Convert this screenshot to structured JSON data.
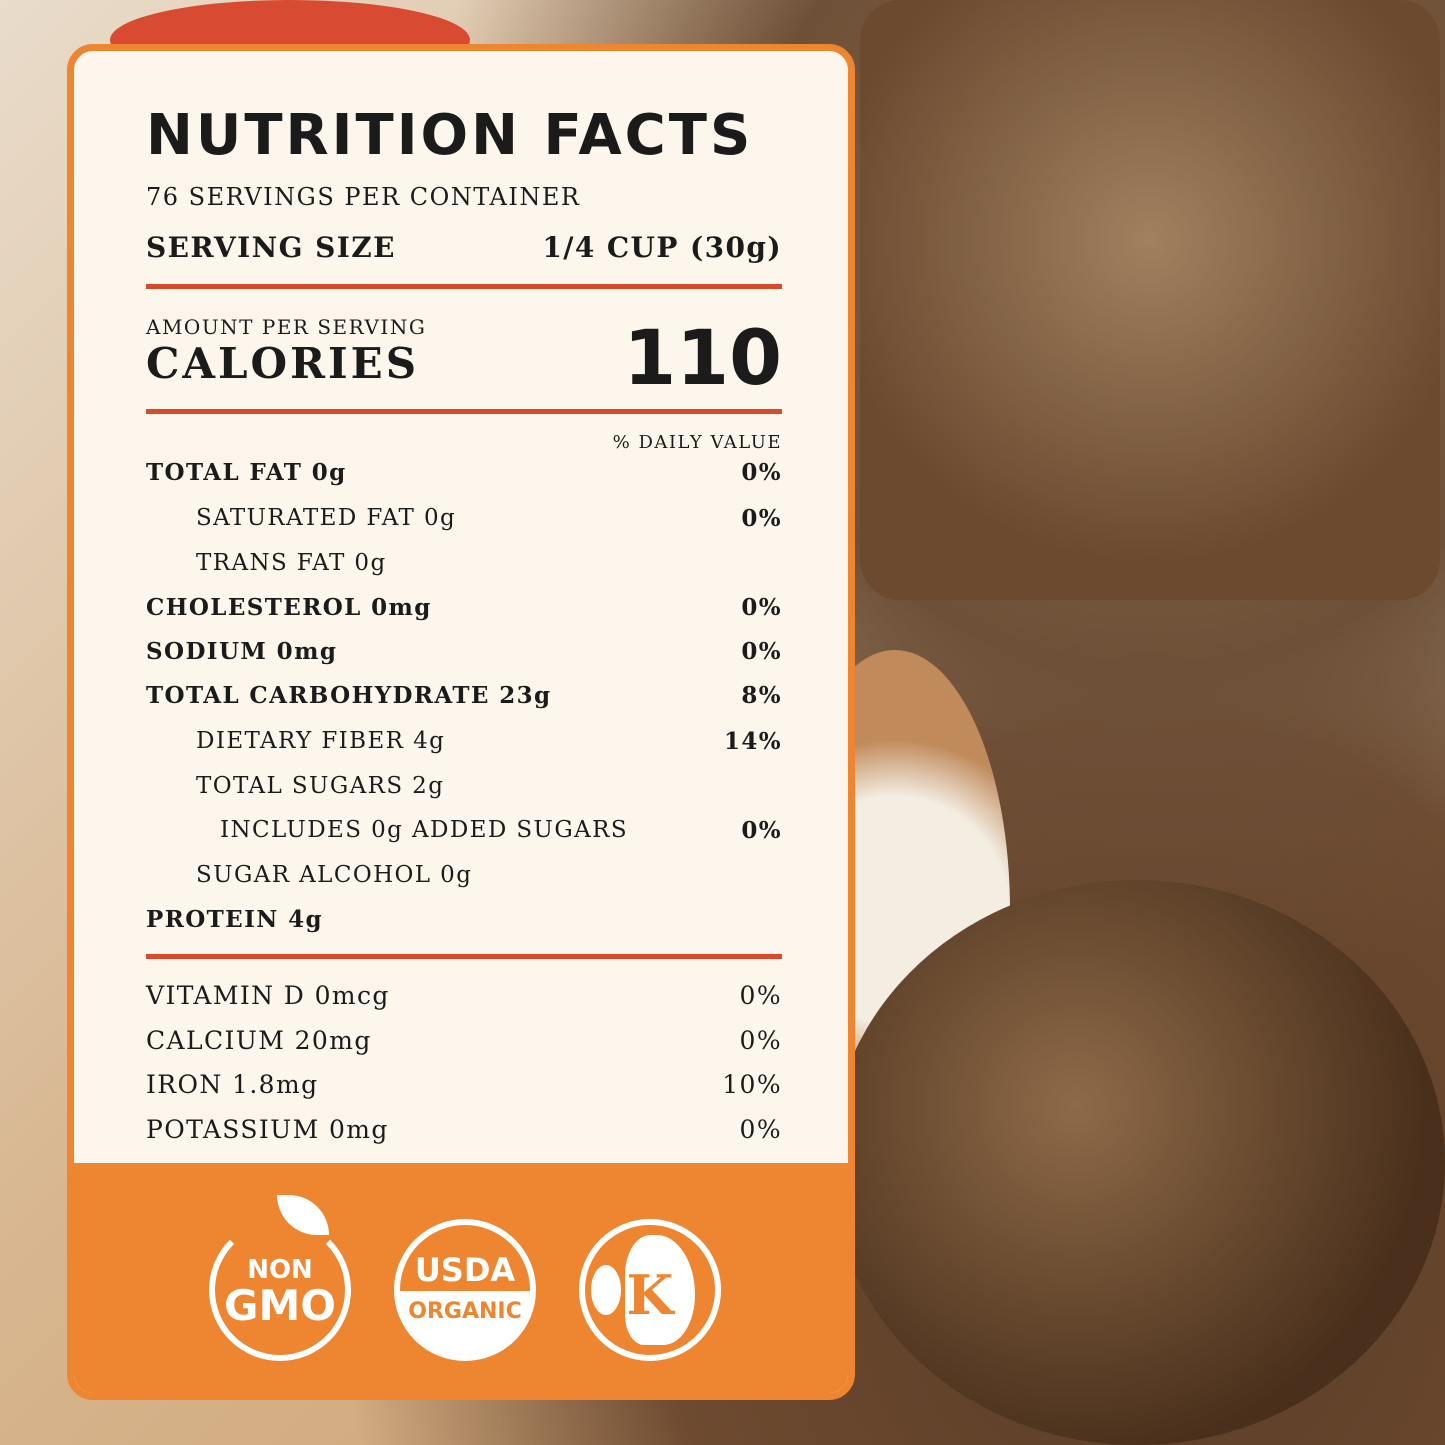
{
  "title": "NUTRITION FACTS",
  "servings": "76 SERVINGS PER CONTAINER",
  "serving_size": {
    "label": "SERVING SIZE",
    "value": "1/4 CUP (30g)"
  },
  "amount_per_serving": "AMOUNT PER SERVING",
  "calories": {
    "label": "CALORIES",
    "value": "110"
  },
  "daily_value_header": "% DAILY VALUE",
  "nutrients": [
    {
      "label": "TOTAL FAT 0g",
      "dv": "0%"
    },
    {
      "label": "SATURATED FAT 0g",
      "dv": "0%"
    },
    {
      "label": "TRANS FAT 0g",
      "dv": ""
    },
    {
      "label": "CHOLESTEROL 0mg",
      "dv": "0%"
    },
    {
      "label": "SODIUM 0mg",
      "dv": "0%"
    },
    {
      "label": "TOTAL CARBOHYDRATE 23g",
      "dv": "8%"
    },
    {
      "label": "DIETARY FIBER 4g",
      "dv": "14%"
    },
    {
      "label": "TOTAL SUGARS 2g",
      "dv": ""
    },
    {
      "label": "INCLUDES 0g ADDED SUGARS",
      "dv": "0%"
    },
    {
      "label": "SUGAR ALCOHOL 0g",
      "dv": ""
    },
    {
      "label": "PROTEIN 4g",
      "dv": ""
    }
  ],
  "vitamins": [
    {
      "label": "VITAMIN D 0mcg",
      "dv": "0%"
    },
    {
      "label": "CALCIUM 20mg",
      "dv": "0%"
    },
    {
      "label": "IRON 1.8mg",
      "dv": "10%"
    },
    {
      "label": "POTASSIUM 0mg",
      "dv": "0%"
    }
  ],
  "badges": {
    "non_gmo": {
      "line1": "NON",
      "line2": "GMO",
      "icon": "leaf-icon"
    },
    "usda": {
      "line1": "USDA",
      "line2": "ORGANIC"
    },
    "kosher": {
      "letter": "K",
      "icon": "globe-icon"
    }
  },
  "colors": {
    "panel_border": "#ee8530",
    "rule": "#d9482a",
    "panel_bg": "#fcf6ec"
  }
}
